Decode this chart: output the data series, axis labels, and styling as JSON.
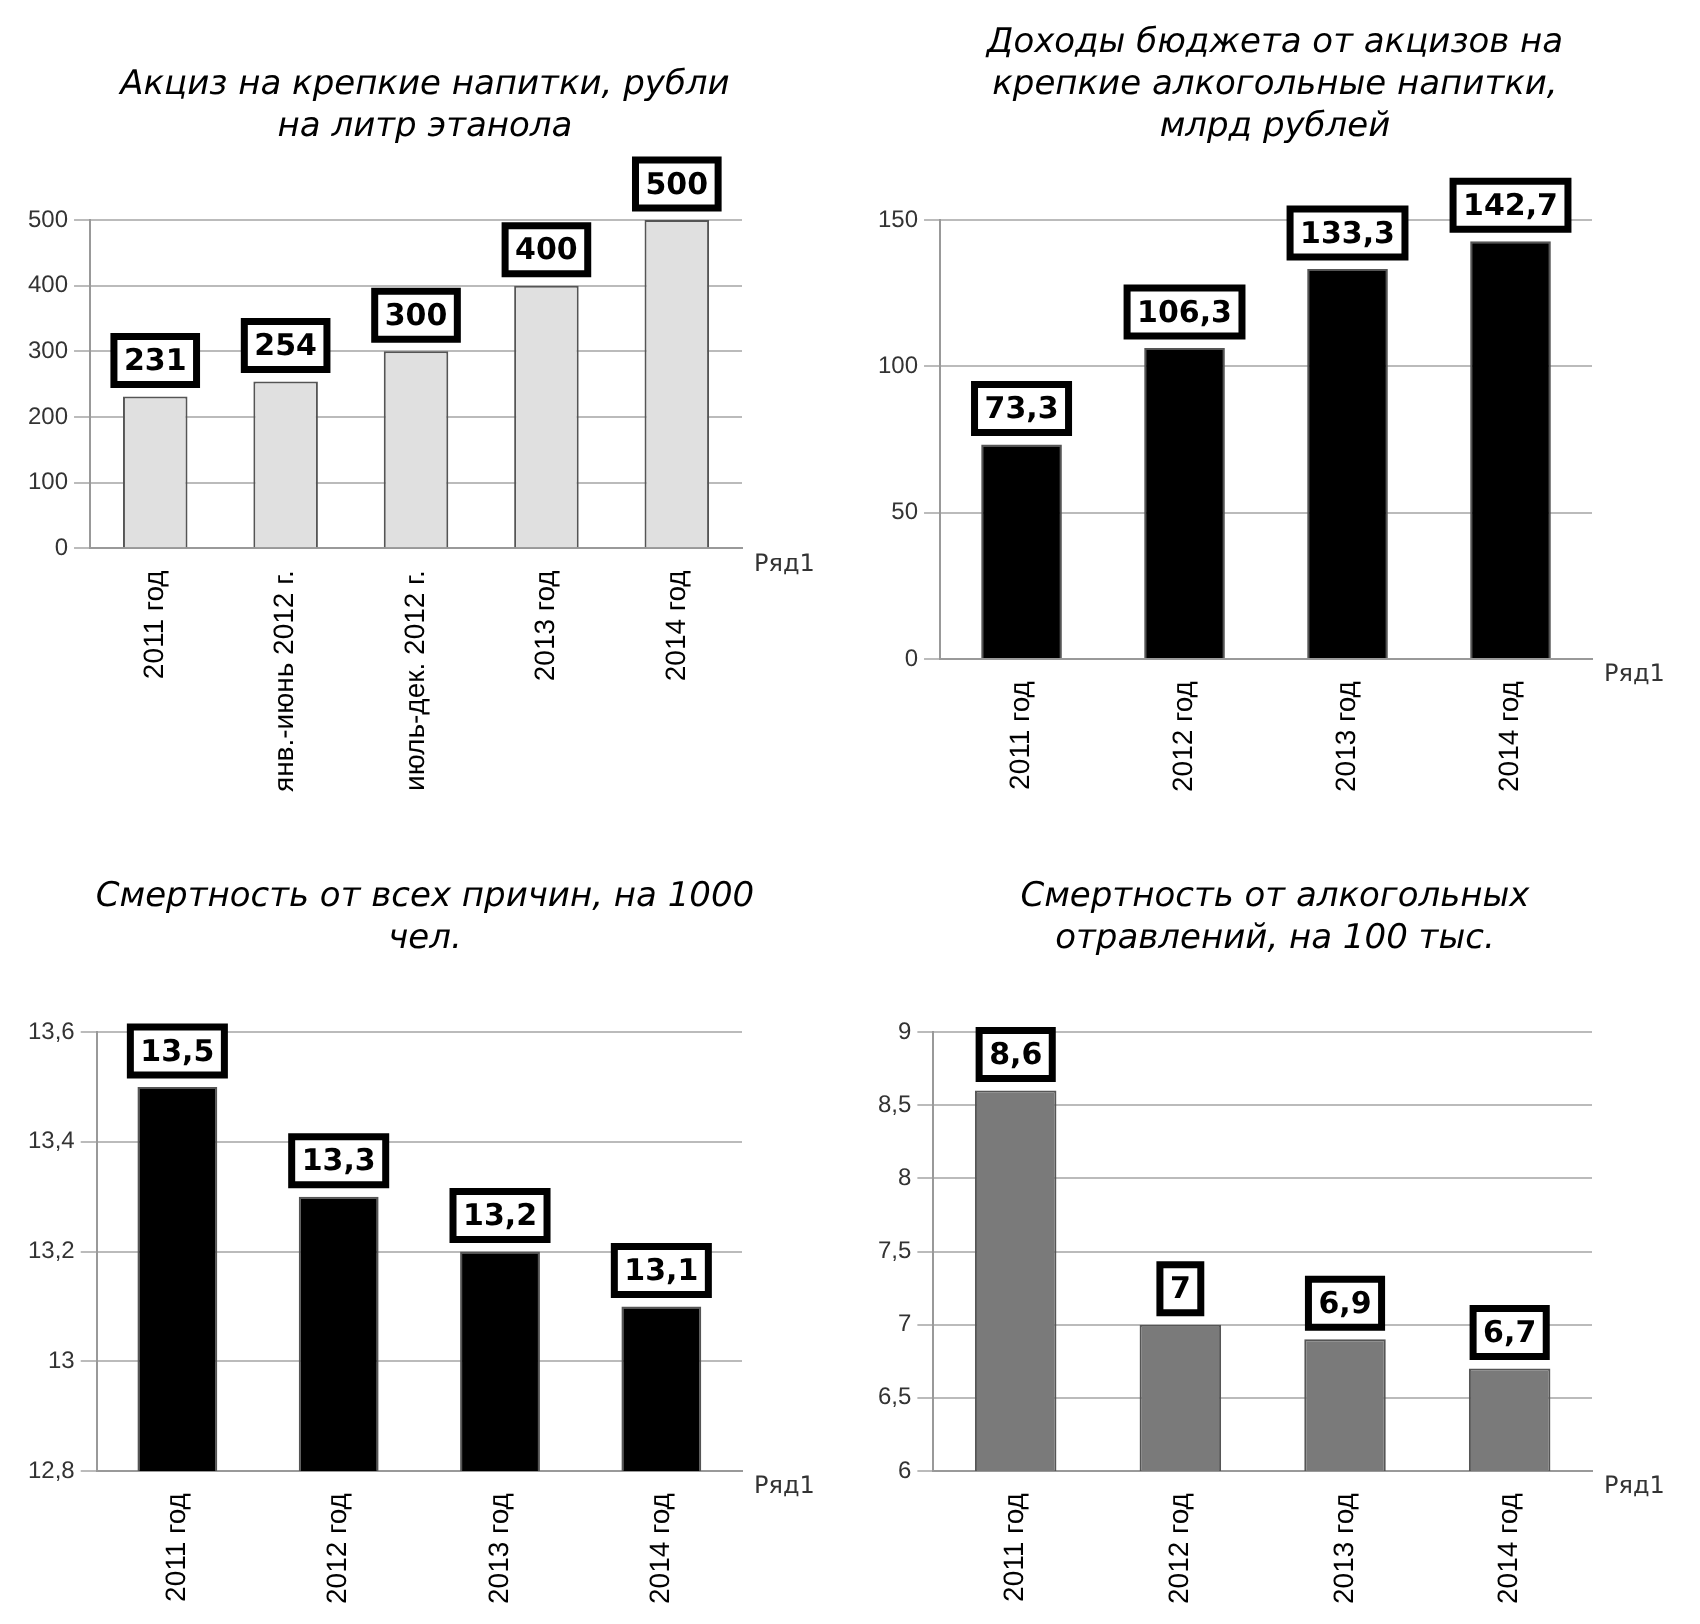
{
  "chart_data": [
    {
      "type": "bar",
      "title": "Акциз на крепкие напитки, рубли на литр этанола",
      "categories": [
        "2011 год",
        "янв.-июнь 2012 г.",
        "июль-дек. 2012 г.",
        "2013 год",
        "2014 год"
      ],
      "series": [
        {
          "name": "Ряд1",
          "color": "#e0e0e0",
          "values": [
            231,
            254,
            300,
            400,
            500
          ],
          "value_labels": [
            "231",
            "254",
            "300",
            "400",
            "500"
          ]
        }
      ],
      "ylim": [
        0,
        500
      ],
      "yticks": [
        0,
        100,
        200,
        300,
        400,
        500
      ],
      "grid": "y"
    },
    {
      "type": "bar",
      "title": "Доходы бюджета от акцизов на крепкие алкогольные напитки, млрд рублей",
      "categories": [
        "2011 год",
        "2012 год",
        "2013 год",
        "2014 год"
      ],
      "series": [
        {
          "name": "Ряд1",
          "color": "#000000",
          "values": [
            73.3,
            106.3,
            133.3,
            142.7
          ],
          "value_labels": [
            "73,3",
            "106,3",
            "133,3",
            "142,7"
          ]
        }
      ],
      "ylim": [
        0,
        150
      ],
      "yticks": [
        0,
        50,
        100,
        150
      ],
      "grid": "y"
    },
    {
      "type": "bar",
      "title": "Смертность от всех причин, на 1000 чел.",
      "categories": [
        "2011 год",
        "2012 год",
        "2013 год",
        "2014 год"
      ],
      "series": [
        {
          "name": "Ряд1",
          "color": "#000000",
          "values": [
            13.5,
            13.3,
            13.2,
            13.1
          ],
          "value_labels": [
            "13,5",
            "13,3",
            "13,2",
            "13,1"
          ]
        }
      ],
      "ylim": [
        12.8,
        13.6
      ],
      "yticks": [
        {
          "value": 12.8,
          "label": "12,8"
        },
        13,
        {
          "value": 13.2,
          "label": "13,2"
        },
        {
          "value": 13.4,
          "label": "13,4"
        },
        {
          "value": 13.6,
          "label": "13,6"
        }
      ],
      "grid": "y"
    },
    {
      "type": "bar",
      "title": "Смертность от алкогольных отравлений, на 100 тыс.",
      "categories": [
        "2011 год",
        "2012 год",
        "2013 год",
        "2014 год"
      ],
      "series": [
        {
          "name": "Ряд1",
          "color": "#7a7a7a",
          "values": [
            8.6,
            7,
            6.9,
            6.7
          ],
          "value_labels": [
            "8,6",
            "7",
            "6,9",
            "6,7"
          ]
        }
      ],
      "ylim": [
        6,
        9
      ],
      "yticks": [
        6,
        {
          "value": 6.5,
          "label": "6,5"
        },
        7,
        {
          "value": 7.5,
          "label": "7,5"
        },
        8,
        {
          "value": 8.5,
          "label": "8,5"
        },
        9
      ],
      "grid": "y"
    }
  ]
}
